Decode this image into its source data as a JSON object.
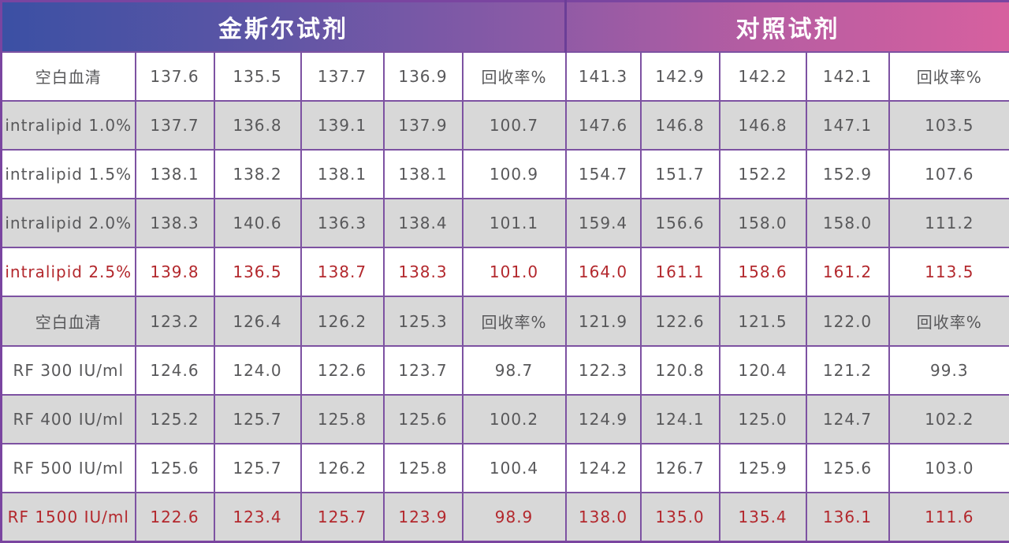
{
  "colors": {
    "gradient_start": "#3b50a4",
    "gradient_mid": "#8a5aa6",
    "gradient_end": "#d7609f",
    "cell_border": "#7d52a2",
    "outer_border": "#7a45a0",
    "header_divider": "#6b3e97",
    "row_shade": "#d8d8d8",
    "text_gray": "#58585a",
    "text_red": "#b3282d",
    "header_text": "#ffffff"
  },
  "chart_data": {
    "type": "table",
    "header_groups": [
      "金斯尔试剂",
      "对照试剂"
    ],
    "header_group_spans": [
      6,
      5
    ],
    "recovery_label": "回收率%",
    "rows": [
      {
        "cells": [
          "空白血清",
          "137.6",
          "135.5",
          "137.7",
          "136.9",
          "回收率%",
          "141.3",
          "142.9",
          "142.2",
          "142.1",
          "回收率%"
        ],
        "shaded": false,
        "red": false
      },
      {
        "cells": [
          "intralipid 1.0%",
          "137.7",
          "136.8",
          "139.1",
          "137.9",
          "100.7",
          "147.6",
          "146.8",
          "146.8",
          "147.1",
          "103.5"
        ],
        "shaded": true,
        "red": false
      },
      {
        "cells": [
          "intralipid 1.5%",
          "138.1",
          "138.2",
          "138.1",
          "138.1",
          "100.9",
          "154.7",
          "151.7",
          "152.2",
          "152.9",
          "107.6"
        ],
        "shaded": false,
        "red": false
      },
      {
        "cells": [
          "intralipid 2.0%",
          "138.3",
          "140.6",
          "136.3",
          "138.4",
          "101.1",
          "159.4",
          "156.6",
          "158.0",
          "158.0",
          "111.2"
        ],
        "shaded": true,
        "red": false
      },
      {
        "cells": [
          "intralipid 2.5%",
          "139.8",
          "136.5",
          "138.7",
          "138.3",
          "101.0",
          "164.0",
          "161.1",
          "158.6",
          "161.2",
          "113.5"
        ],
        "shaded": false,
        "red": true
      },
      {
        "cells": [
          "空白血清",
          "123.2",
          "126.4",
          "126.2",
          "125.3",
          "回收率%",
          "121.9",
          "122.6",
          "121.5",
          "122.0",
          "回收率%"
        ],
        "shaded": true,
        "red": false
      },
      {
        "cells": [
          "RF 300 IU/ml",
          "124.6",
          "124.0",
          "122.6",
          "123.7",
          "98.7",
          "122.3",
          "120.8",
          "120.4",
          "121.2",
          "99.3"
        ],
        "shaded": false,
        "red": false
      },
      {
        "cells": [
          "RF 400 IU/ml",
          "125.2",
          "125.7",
          "125.8",
          "125.6",
          "100.2",
          "124.9",
          "124.1",
          "125.0",
          "124.7",
          "102.2"
        ],
        "shaded": true,
        "red": false
      },
      {
        "cells": [
          "RF 500 IU/ml",
          "125.6",
          "125.7",
          "126.2",
          "125.8",
          "100.4",
          "124.2",
          "126.7",
          "125.9",
          "125.6",
          "103.0"
        ],
        "shaded": false,
        "red": false
      },
      {
        "cells": [
          "RF 1500 IU/ml",
          "122.6",
          "123.4",
          "125.7",
          "123.9",
          "98.9",
          "138.0",
          "135.0",
          "135.4",
          "136.1",
          "111.6"
        ],
        "shaded": true,
        "red": true
      }
    ]
  }
}
